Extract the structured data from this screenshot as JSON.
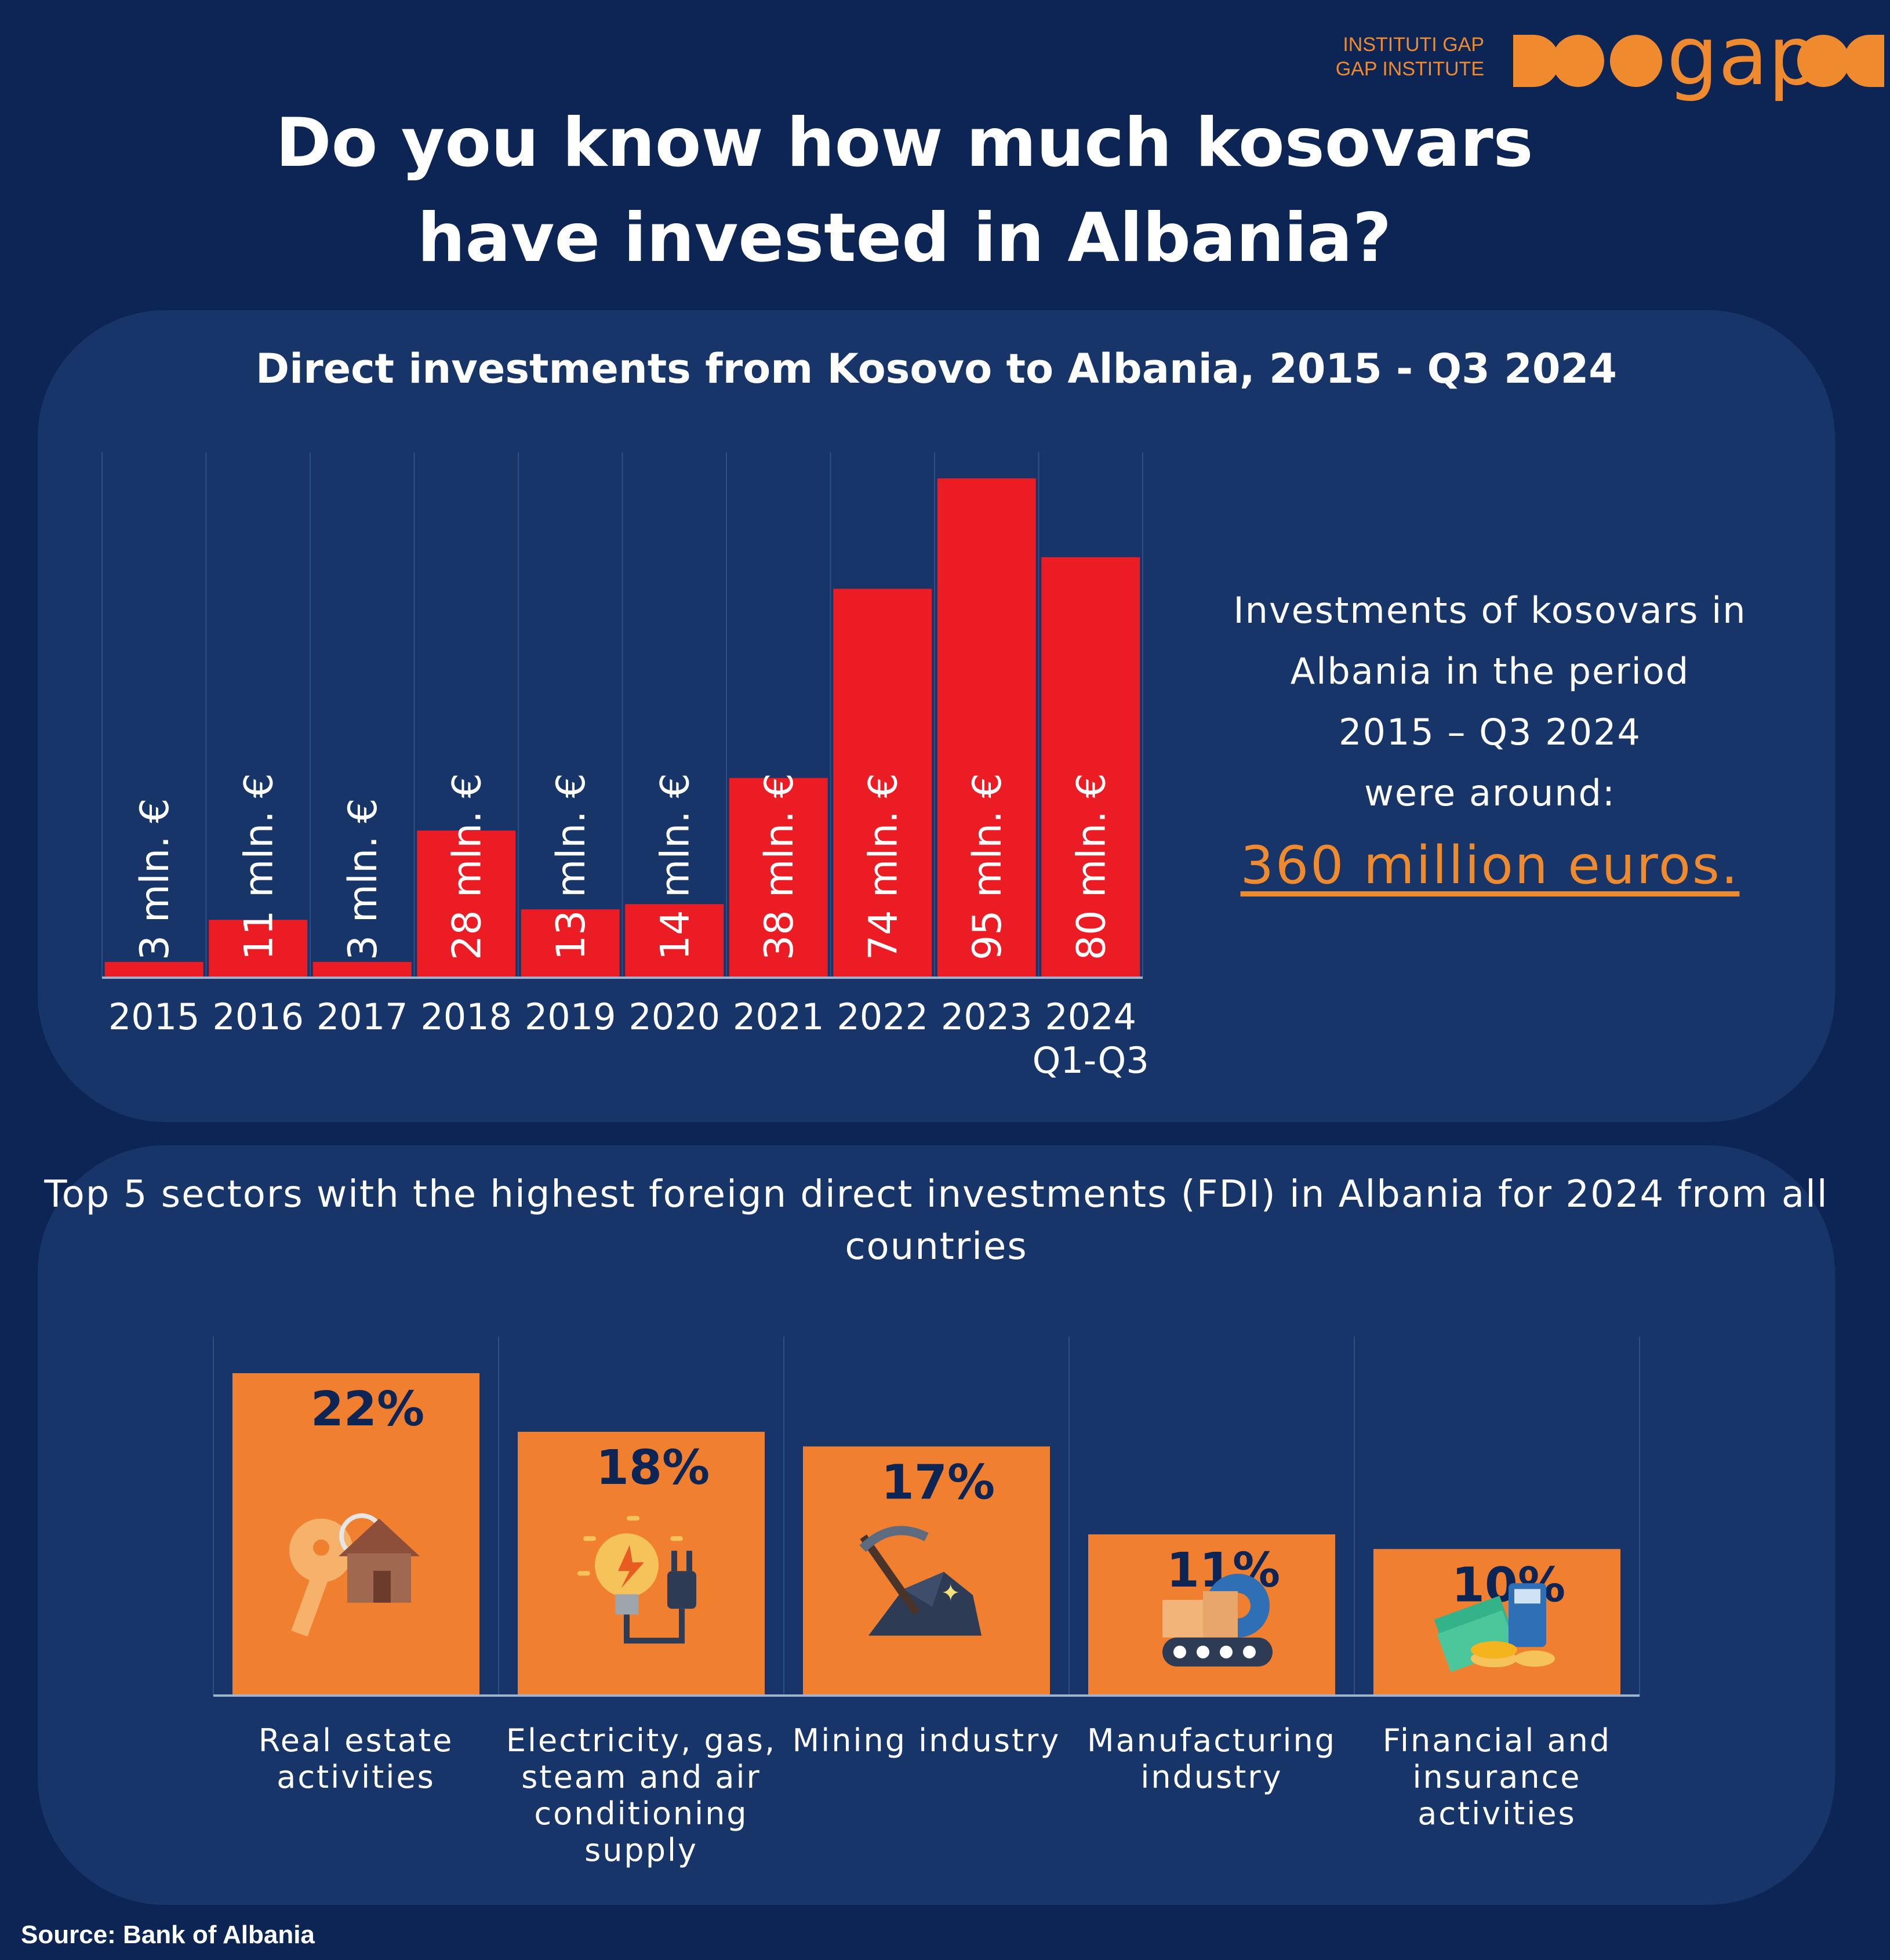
{
  "logo": {
    "line1": "INSTITUTI GAP",
    "line2": "GAP INSTITUTE",
    "wordmark": "gap",
    "color": "#f08a2e"
  },
  "title": "Do you know how much kosovars have invested in Albania?",
  "summary": {
    "lines": [
      "Investments of kosovars in",
      "Albania in the period",
      "2015 – Q3 2024",
      "were around:"
    ],
    "amount": "360 million euros."
  },
  "source": "Source: Bank of Albania",
  "colors": {
    "background": "#0d2555",
    "panel": "#173569",
    "bar_red": "#ec1c24",
    "bar_orange": "#f08030",
    "accent": "#f08a2e",
    "label_dark": "#0d2555"
  },
  "chart_data": [
    {
      "type": "bar",
      "title": "Direct investments from Kosovo to Albania, 2015 - Q3 2024",
      "categories": [
        "2015",
        "2016",
        "2017",
        "2018",
        "2019",
        "2020",
        "2021",
        "2022",
        "2023",
        "2024 Q1-Q3"
      ],
      "values": [
        3,
        11,
        3,
        28,
        13,
        14,
        38,
        74,
        95,
        80
      ],
      "data_labels": [
        "3 mln. €",
        "11 mln. €",
        "3 mln. €",
        "28 mln. €",
        "13 mln. €",
        "14 mln. €",
        "38 mln. €",
        "74 mln. €",
        "95 mln. €",
        "80 mln. €"
      ],
      "xlabel": "",
      "ylabel": "",
      "ylim": [
        0,
        95
      ],
      "grid": true,
      "color": "#ec1c24"
    },
    {
      "type": "bar",
      "title": "Top 5 sectors with the highest foreign direct investments (FDI) in Albania for 2024 from all countries",
      "categories": [
        "Real estate activities",
        "Electricity, gas, steam and air conditioning supply",
        "Mining industry",
        "Manufacturing industry",
        "Financial and insurance activities"
      ],
      "values": [
        22,
        18,
        17,
        11,
        10
      ],
      "data_labels": [
        "22%",
        "18%",
        "17%",
        "11%",
        "10%"
      ],
      "icons": [
        "key-house-icon",
        "lightbulb-plug-icon",
        "pickaxe-coal-icon",
        "conveyor-gear-icon",
        "money-coins-icon"
      ],
      "xlabel": "",
      "ylabel": "",
      "ylim": [
        0,
        22
      ],
      "grid": true,
      "color": "#f08030"
    }
  ]
}
